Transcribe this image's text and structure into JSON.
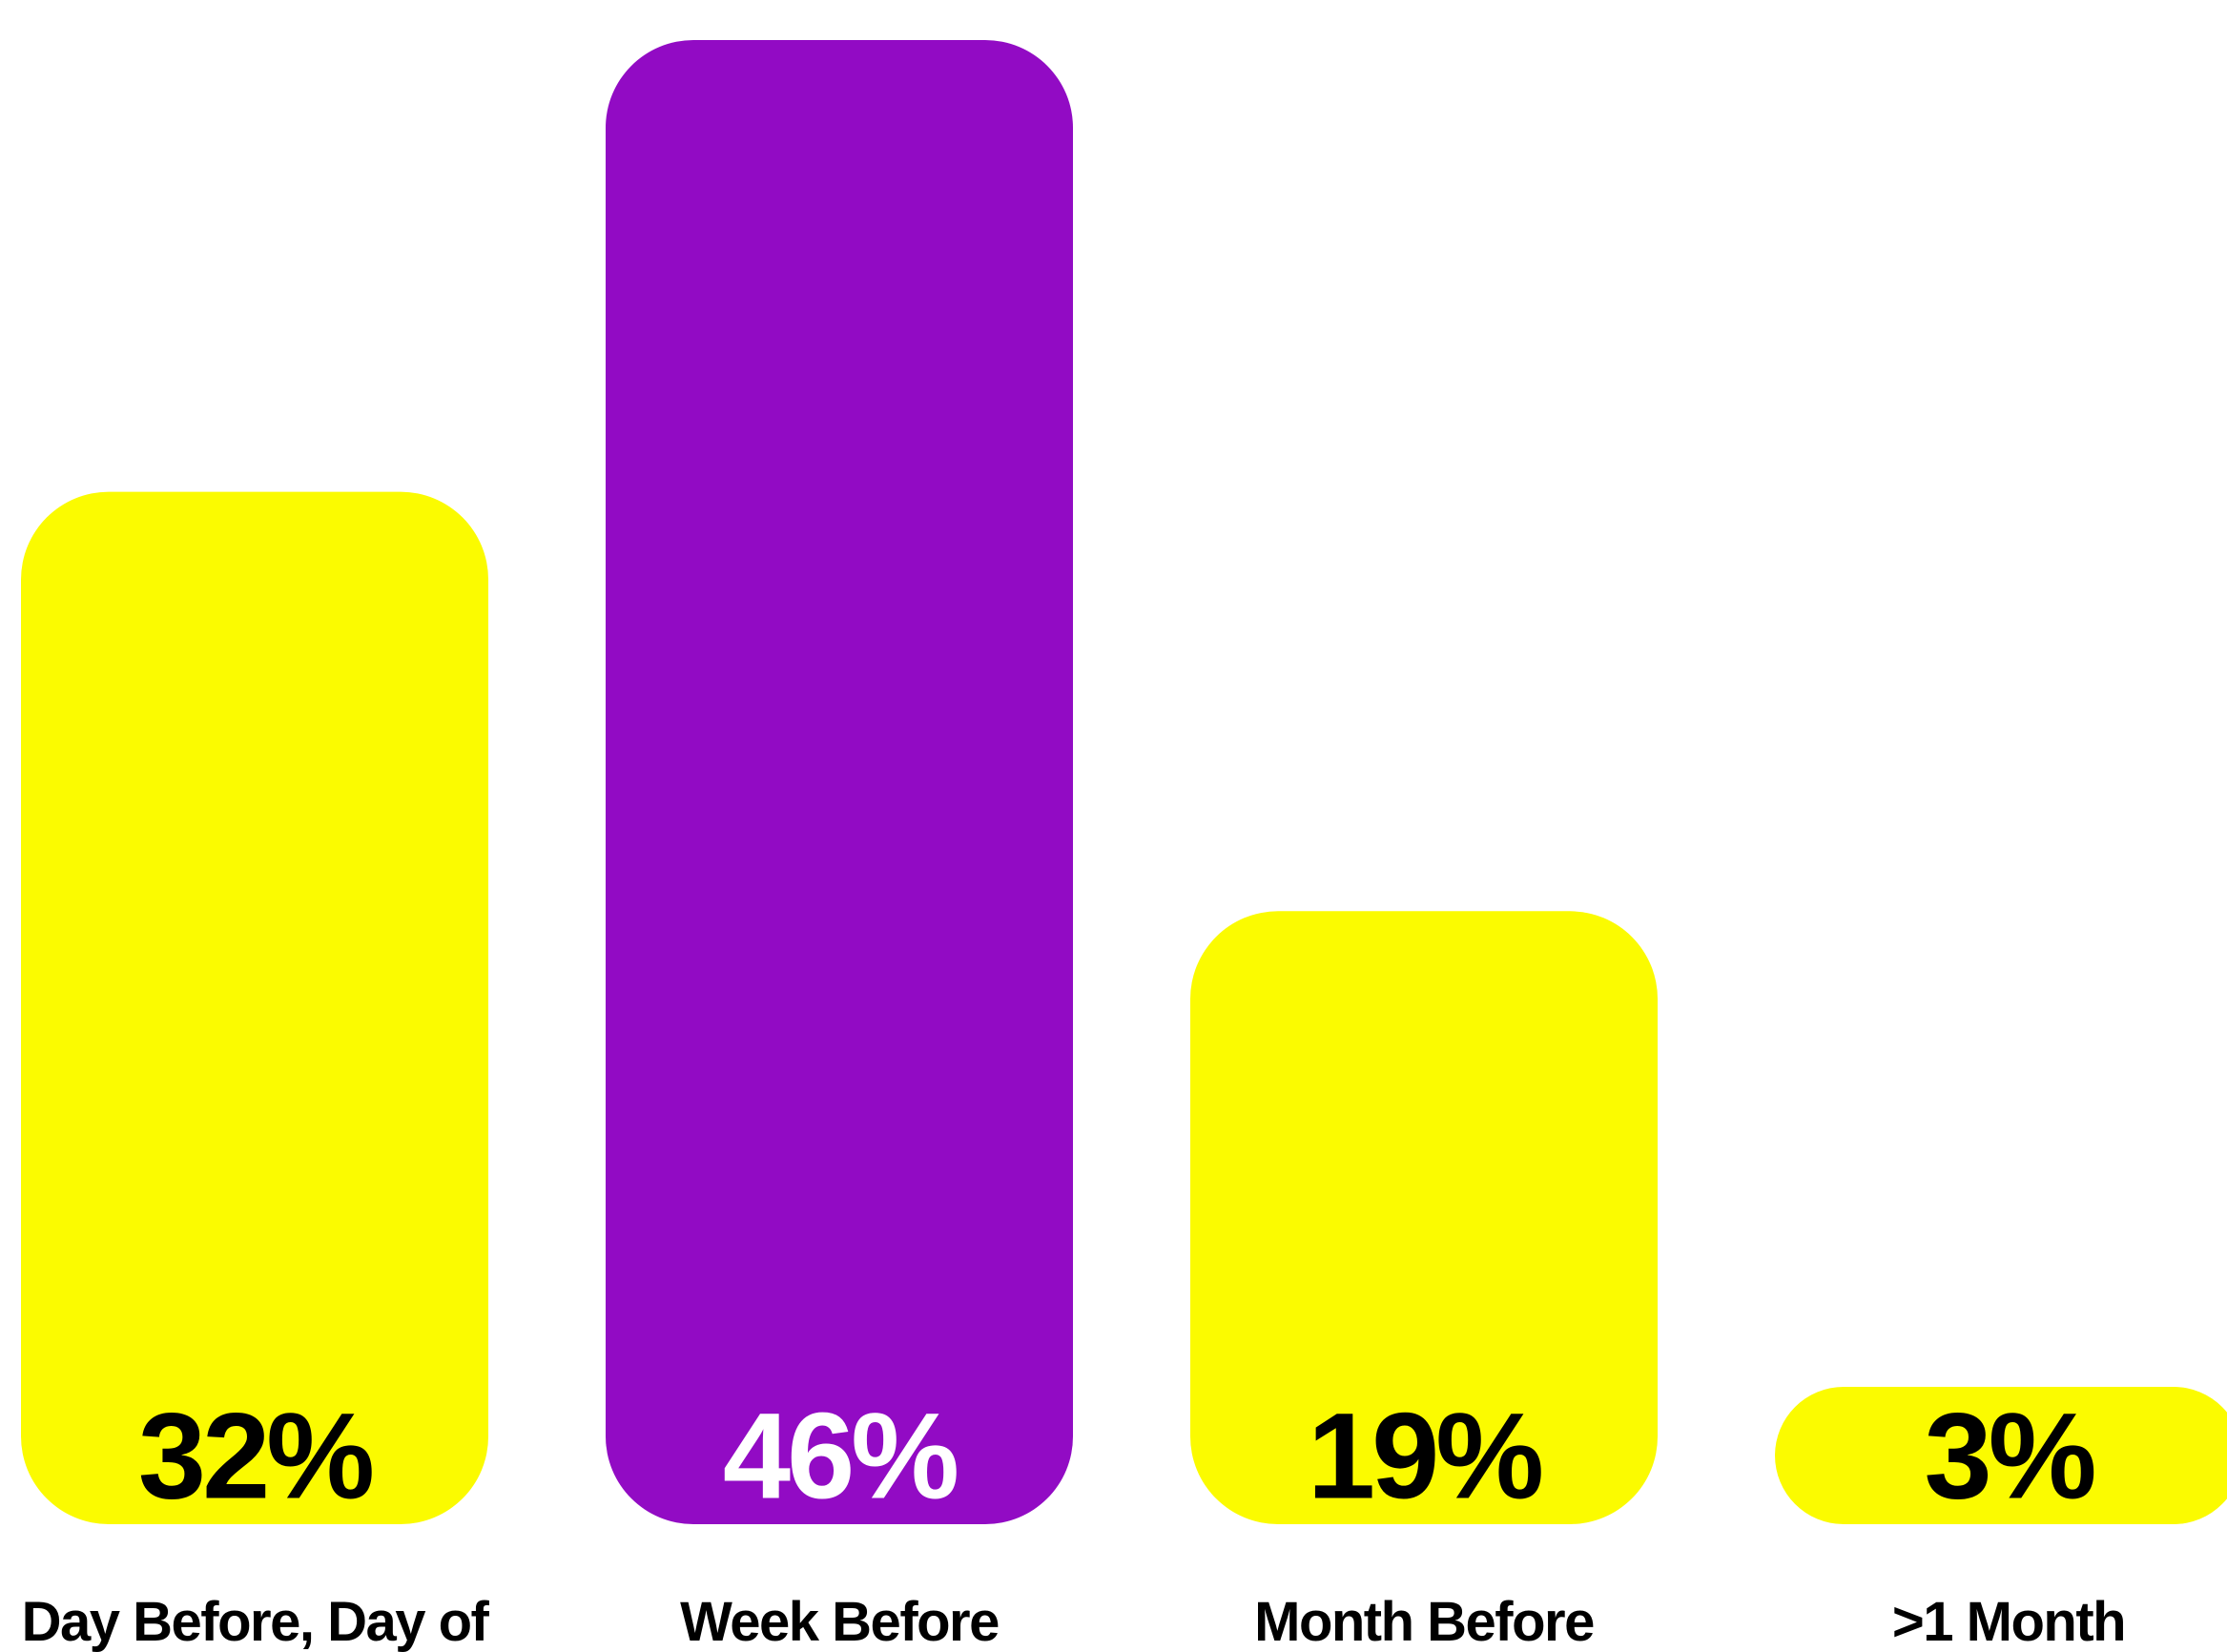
{
  "chart_data": {
    "type": "bar",
    "categories": [
      "Day Before, Day of",
      "Week Before",
      "Month Before",
      ">1 Month"
    ],
    "values": [
      32,
      46,
      19,
      3
    ],
    "value_labels": [
      "32%",
      "46%",
      "19%",
      "3%"
    ],
    "unit": "%",
    "ylim": [
      0,
      46
    ],
    "grid": false,
    "legend": "none",
    "bar_colors": [
      "#FBFB00",
      "#920BC4",
      "#FBFB00",
      "#FBFB00"
    ],
    "value_label_colors": [
      "#000000",
      "#FFFFFF",
      "#000000",
      "#000000"
    ],
    "category_label_color": "#000000"
  }
}
